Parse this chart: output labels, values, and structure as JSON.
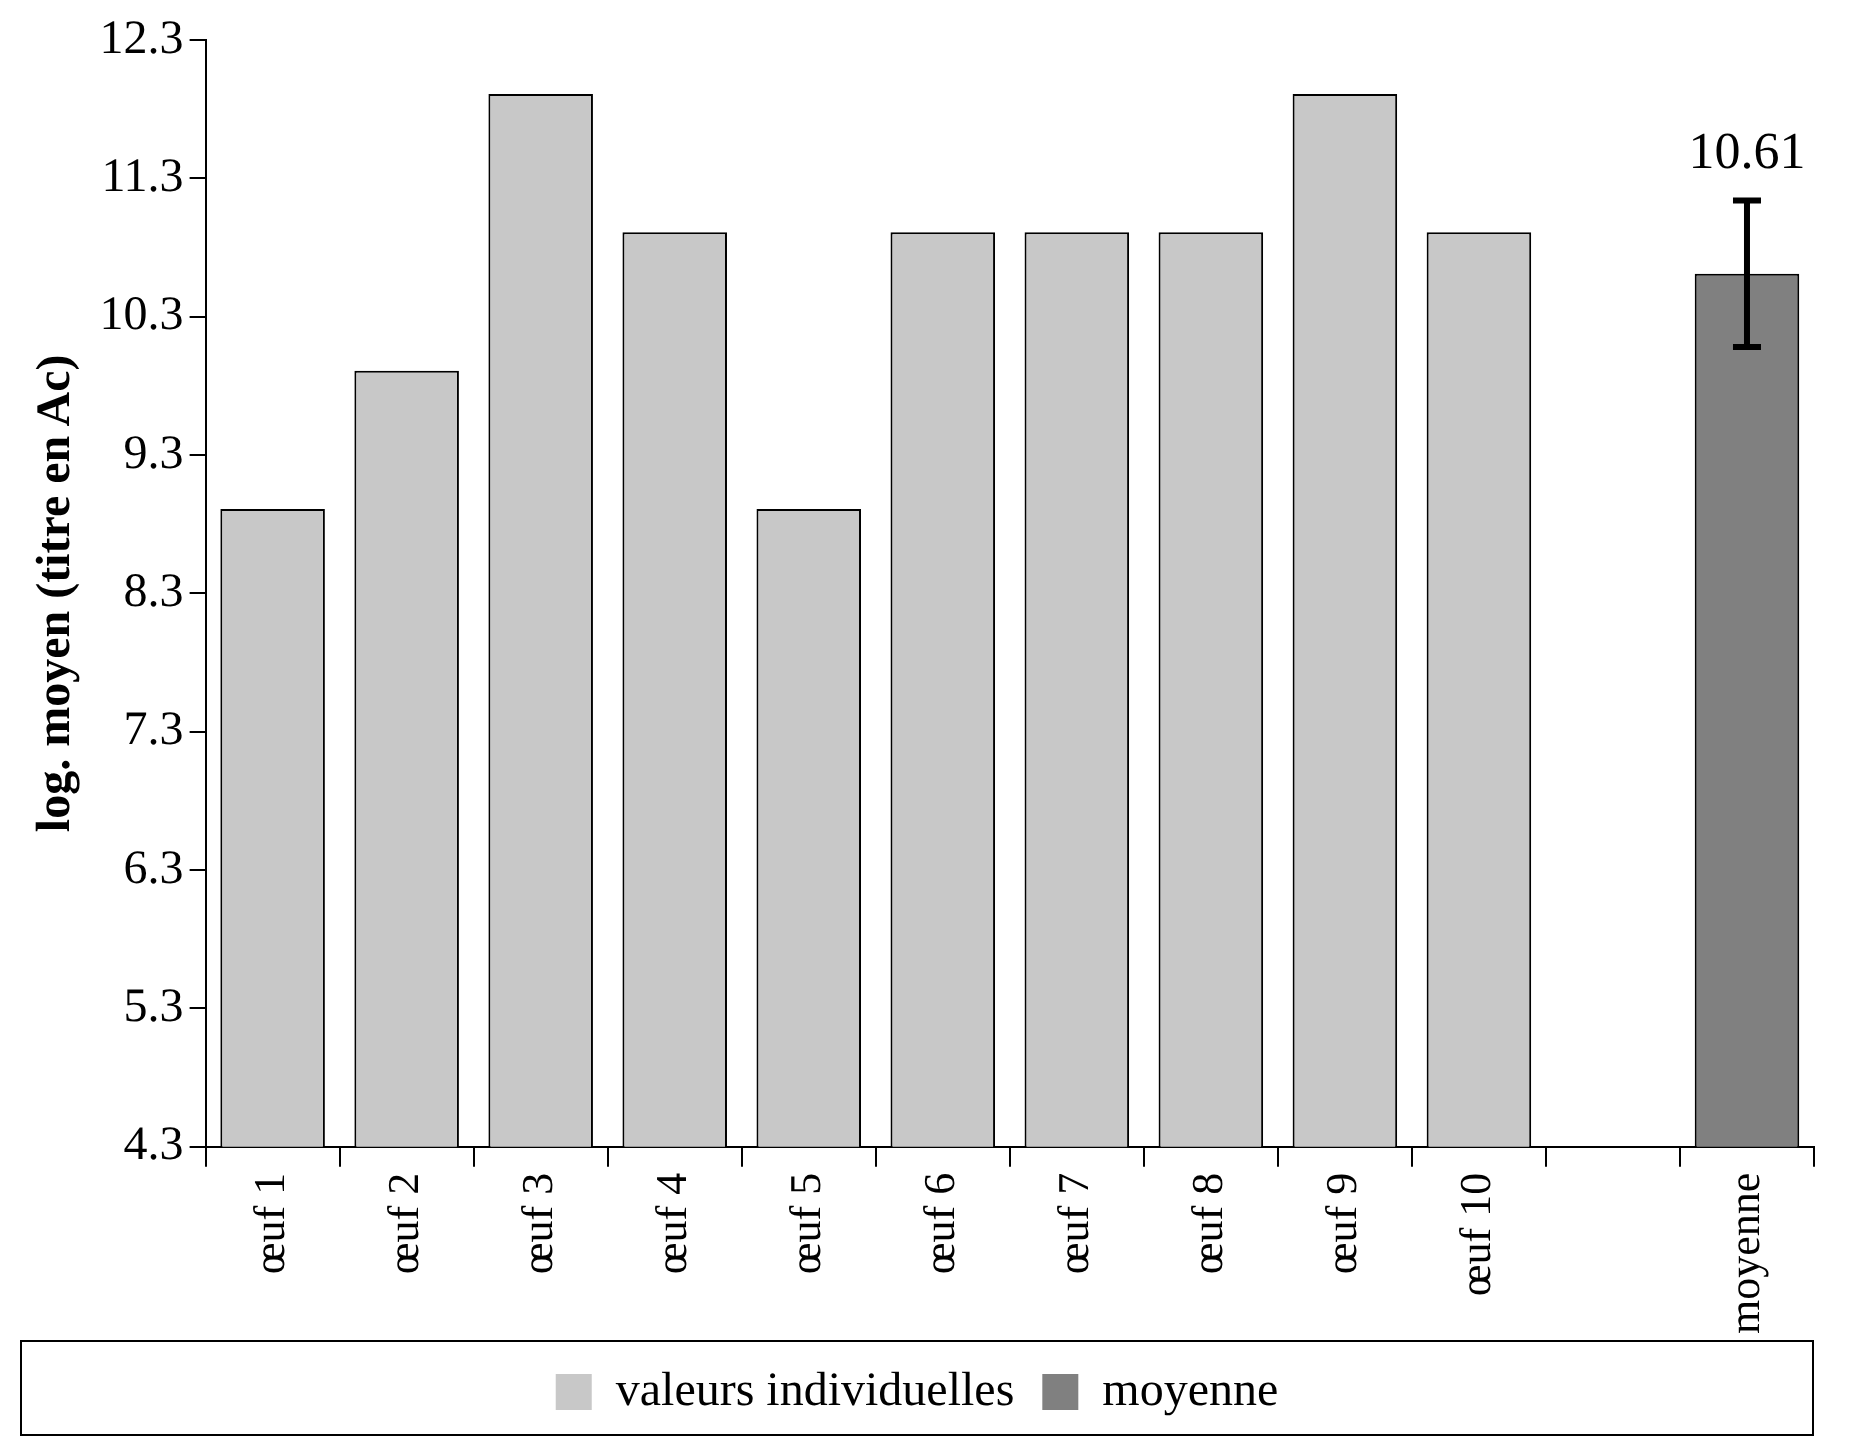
{
  "chart_data": {
    "type": "bar",
    "ylabel": "log. moyen (titre en Ac)",
    "categories": [
      "œuf 1",
      "œuf 2",
      "œuf 3",
      "œuf 4",
      "œuf 5",
      "œuf 6",
      "œuf 7",
      "œuf 8",
      "œuf 9",
      "œuf 10",
      null,
      "moyenne"
    ],
    "series": [
      {
        "name": "valeurs individuelles",
        "color": "#c8c8c8",
        "values": [
          8.91,
          9.91,
          11.91,
          10.91,
          8.91,
          10.91,
          10.91,
          10.91,
          11.91,
          10.91,
          null,
          null
        ]
      },
      {
        "name": "moyenne",
        "color": "#808080",
        "values": [
          null,
          null,
          null,
          null,
          null,
          null,
          null,
          null,
          null,
          null,
          null,
          10.61
        ],
        "errors": [
          null,
          null,
          null,
          null,
          null,
          null,
          null,
          null,
          null,
          null,
          null,
          0.53
        ],
        "value_labels": [
          null,
          null,
          null,
          null,
          null,
          null,
          null,
          null,
          null,
          null,
          null,
          "10.61"
        ]
      }
    ],
    "ylim": [
      4.3,
      12.3
    ],
    "yticks": [
      4.3,
      5.3,
      6.3,
      7.3,
      8.3,
      9.3,
      10.3,
      11.3,
      12.3
    ],
    "grid": false,
    "legend": "bottom"
  }
}
